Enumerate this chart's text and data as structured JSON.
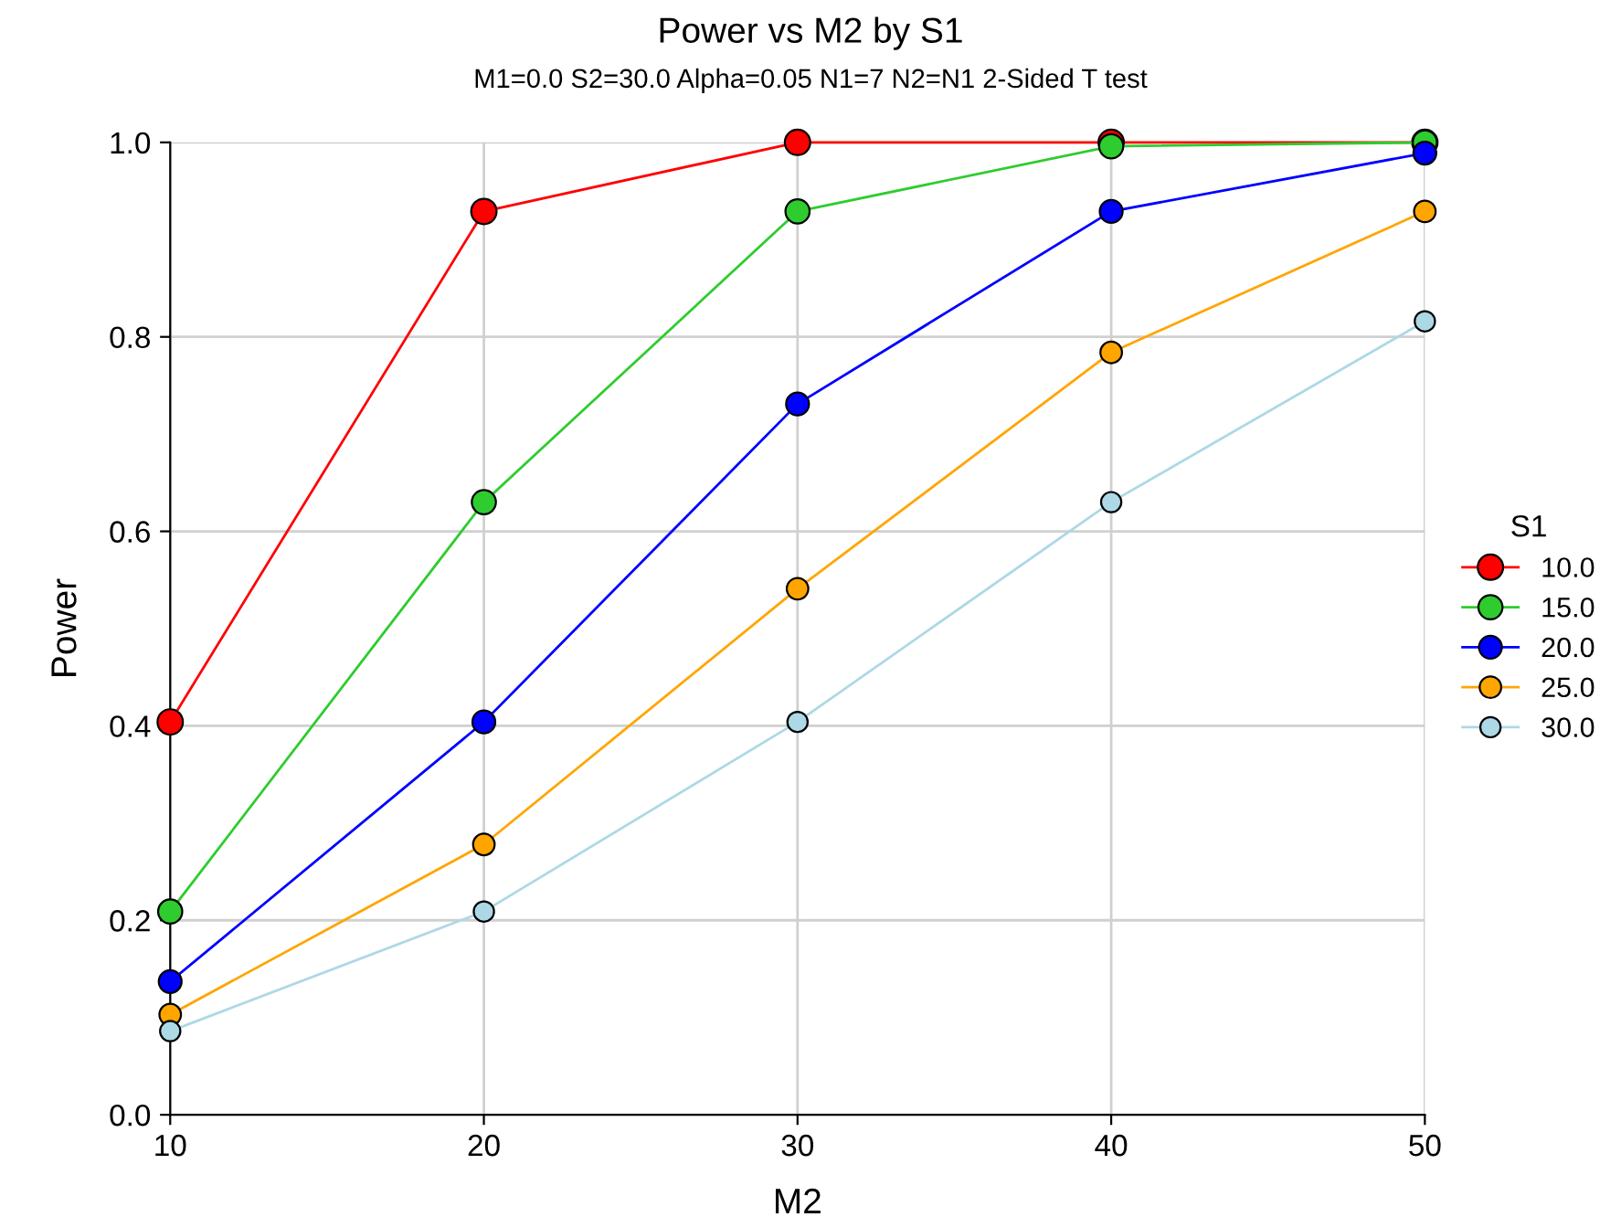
{
  "chart_data": {
    "type": "line",
    "title": "Power vs M2 by S1",
    "subtitle": "M1=0.0 S2=30.0 Alpha=0.05 N1=7 N2=N1 2-Sided T test",
    "xlabel": "M2",
    "ylabel": "Power",
    "legend_title": "S1",
    "x": [
      10,
      20,
      30,
      40,
      50
    ],
    "series": [
      {
        "name": "10.0",
        "color": "#ff0000",
        "values": [
          0.404,
          0.929,
          1.0,
          1.0,
          1.0
        ]
      },
      {
        "name": "15.0",
        "color": "#2ecc2e",
        "values": [
          0.209,
          0.63,
          0.929,
          0.996,
          1.0
        ]
      },
      {
        "name": "20.0",
        "color": "#0000ff",
        "values": [
          0.137,
          0.404,
          0.731,
          0.929,
          0.989
        ]
      },
      {
        "name": "25.0",
        "color": "#ffa500",
        "values": [
          0.103,
          0.278,
          0.541,
          0.784,
          0.929
        ]
      },
      {
        "name": "30.0",
        "color": "#add8e6",
        "values": [
          0.086,
          0.209,
          0.404,
          0.63,
          0.816
        ]
      }
    ],
    "xlim": [
      10,
      50
    ],
    "xticks": [
      10,
      20,
      30,
      40,
      50
    ],
    "ylim": [
      0.0,
      1.0
    ],
    "yticks": [
      {
        "value": 0,
        "label": "0.0"
      },
      {
        "value": 0.2,
        "label": "0.2"
      },
      {
        "value": 0.4,
        "label": "0.4"
      },
      {
        "value": 0.6,
        "label": "0.6"
      },
      {
        "value": 0.8,
        "label": "0.8"
      },
      {
        "value": 1.0,
        "label": "1.0"
      }
    ],
    "grid": true,
    "legend": "right",
    "marker": "circle",
    "line_style": "solid"
  }
}
